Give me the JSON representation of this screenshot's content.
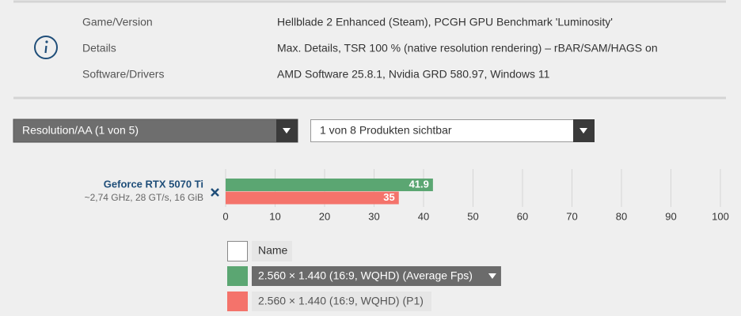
{
  "info": {
    "rows": [
      {
        "label": "Game/Version",
        "value": "Hellblade 2 Enhanced (Steam), PCGH GPU Benchmark 'Luminosity'"
      },
      {
        "label": "Details",
        "value": "Max. Details, TSR 100 % (native resolution rendering) – rBAR/SAM/HAGS on"
      },
      {
        "label": "Software/Drivers",
        "value": "AMD Software 25.8.1, Nvidia GRD 580.97, Windows 11"
      }
    ]
  },
  "dropdowns": {
    "resolution": "Resolution/AA (1 von 5)",
    "products": "1 von 8 Produkten sichtbar"
  },
  "chart_data": {
    "type": "hbar",
    "categories": [
      "Geforce RTX 5070 Ti"
    ],
    "category_details": [
      "~2,74 GHz, 28 GT/s, 16 GiB"
    ],
    "series": [
      {
        "name": "2.560 × 1.440 (16:9, WQHD) (Average Fps)",
        "color": "#5ba672",
        "values": [
          41.9
        ]
      },
      {
        "name": "2.560 × 1.440 (16:9, WQHD) (P1)",
        "color": "#f4736b",
        "values": [
          35
        ]
      }
    ],
    "xlim": [
      0,
      100
    ],
    "xticks": [
      0,
      10,
      20,
      30,
      40,
      50,
      60,
      70,
      80,
      90,
      100
    ],
    "grid": true,
    "legend_header": "Name"
  }
}
